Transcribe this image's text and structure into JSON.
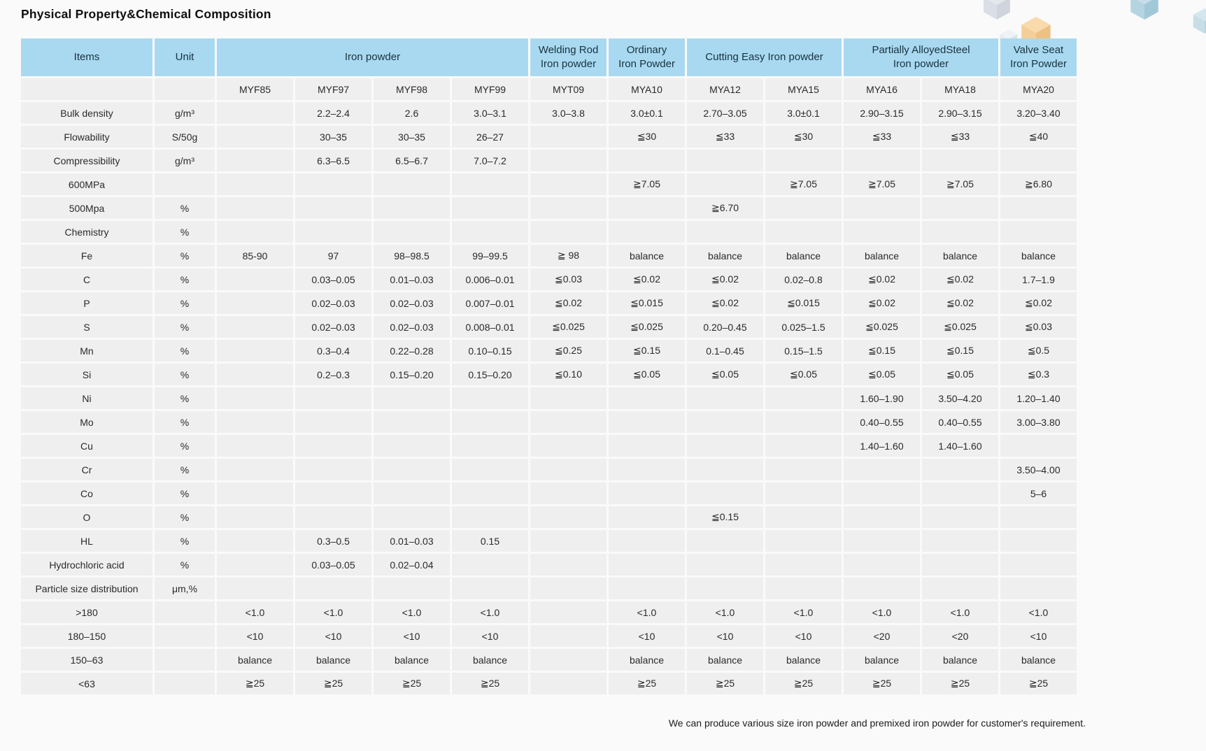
{
  "page": {
    "title": "Physical Property&Chemical Composition",
    "footer_note": "We can produce various size iron powder and premixed iron powder for customer's requirement."
  },
  "colors": {
    "header_blue": "#a9d9f0",
    "cell_gray": "#efefef",
    "page_background": "#fafafa"
  },
  "table": {
    "group_headers": [
      {
        "label": "Items"
      },
      {
        "label": "Unit"
      },
      {
        "label": "Iron powder"
      },
      {
        "label": "Welding Rod\nIron  powder"
      },
      {
        "label": "Ordinary\nIron Powder"
      },
      {
        "label": "Cutting Easy Iron powder"
      },
      {
        "label": "Partially AlloyedSteel\nIron powder"
      },
      {
        "label": "Valve Seat\nIron Powder"
      }
    ],
    "model_row": [
      "",
      "",
      "MYF85",
      "MYF97",
      "MYF98",
      "MYF99",
      "MYT09",
      "MYA10",
      "MYA12",
      "MYA15",
      "MYA16",
      "MYA18",
      "MYA20"
    ],
    "rows": [
      {
        "item": "Bulk density",
        "unit": "g/m³",
        "values": [
          "",
          "2.2–2.4",
          "2.6",
          "3.0–3.1",
          "3.0–3.8",
          "3.0±0.1",
          "2.70–3.05",
          "3.0±0.1",
          "2.90–3.15",
          "2.90–3.15",
          "3.20–3.40"
        ]
      },
      {
        "item": "Flowability",
        "unit": "S/50g",
        "values": [
          "",
          "30–35",
          "30–35",
          "26–27",
          "",
          "≦30",
          "≦33",
          "≦30",
          "≦33",
          "≦33",
          "≦40"
        ]
      },
      {
        "item": "Compressibility",
        "unit": "g/m³",
        "values": [
          "",
          "6.3–6.5",
          "6.5–6.7",
          "7.0–7.2",
          "",
          "",
          "",
          "",
          "",
          "",
          ""
        ]
      },
      {
        "item": "600MPa",
        "unit": "",
        "values": [
          "",
          "",
          "",
          "",
          "",
          "≧7.05",
          "",
          "≧7.05",
          "≧7.05",
          "≧7.05",
          "≧6.80"
        ]
      },
      {
        "item": "500Mpa",
        "unit": "%",
        "values": [
          "",
          "",
          "",
          "",
          "",
          "",
          "≧6.70",
          "",
          "",
          "",
          ""
        ]
      },
      {
        "item": "Chemistry",
        "unit": "%",
        "values": [
          "",
          "",
          "",
          "",
          "",
          "",
          "",
          "",
          "",
          "",
          ""
        ]
      },
      {
        "item": "Fe",
        "unit": "%",
        "values": [
          "85-90",
          "97",
          "98–98.5",
          "99–99.5",
          "≧ 98",
          "balance",
          "balance",
          "balance",
          "balance",
          "balance",
          "balance"
        ]
      },
      {
        "item": "C",
        "unit": "%",
        "values": [
          "",
          "0.03–0.05",
          "0.01–0.03",
          "0.006–0.01",
          "≦0.03",
          "≦0.02",
          "≦0.02",
          "0.02–0.8",
          "≦0.02",
          "≦0.02",
          "1.7–1.9"
        ]
      },
      {
        "item": "P",
        "unit": "%",
        "values": [
          "",
          "0.02–0.03",
          "0.02–0.03",
          "0.007–0.01",
          "≦0.02",
          "≦0.015",
          "≦0.02",
          "≦0.015",
          "≦0.02",
          "≦0.02",
          "≦0.02"
        ]
      },
      {
        "item": "S",
        "unit": "%",
        "values": [
          "",
          "0.02–0.03",
          "0.02–0.03",
          "0.008–0.01",
          "≦0.025",
          "≦0.025",
          "0.20–0.45",
          "0.025–1.5",
          "≦0.025",
          "≦0.025",
          "≦0.03"
        ]
      },
      {
        "item": "Mn",
        "unit": "%",
        "values": [
          "",
          "0.3–0.4",
          "0.22–0.28",
          "0.10–0.15",
          "≦0.25",
          "≦0.15",
          "0.1–0.45",
          "0.15–1.5",
          "≦0.15",
          "≦0.15",
          "≦0.5"
        ]
      },
      {
        "item": "Si",
        "unit": "%",
        "values": [
          "",
          "0.2–0.3",
          "0.15–0.20",
          "0.15–0.20",
          "≦0.10",
          "≦0.05",
          "≦0.05",
          "≦0.05",
          "≦0.05",
          "≦0.05",
          "≦0.3"
        ]
      },
      {
        "item": "Ni",
        "unit": "%",
        "values": [
          "",
          "",
          "",
          "",
          "",
          "",
          "",
          "",
          "1.60–1.90",
          "3.50–4.20",
          "1.20–1.40"
        ]
      },
      {
        "item": "Mo",
        "unit": "%",
        "values": [
          "",
          "",
          "",
          "",
          "",
          "",
          "",
          "",
          "0.40–0.55",
          "0.40–0.55",
          "3.00–3.80"
        ]
      },
      {
        "item": "Cu",
        "unit": "%",
        "values": [
          "",
          "",
          "",
          "",
          "",
          "",
          "",
          "",
          "1.40–1.60",
          "1.40–1.60",
          ""
        ]
      },
      {
        "item": "Cr",
        "unit": "%",
        "values": [
          "",
          "",
          "",
          "",
          "",
          "",
          "",
          "",
          "",
          "",
          "3.50–4.00"
        ]
      },
      {
        "item": "Co",
        "unit": "%",
        "values": [
          "",
          "",
          "",
          "",
          "",
          "",
          "",
          "",
          "",
          "",
          "5–6"
        ]
      },
      {
        "item": "O",
        "unit": "%",
        "values": [
          "",
          "",
          "",
          "",
          "",
          "",
          "≦0.15",
          "",
          "",
          "",
          ""
        ]
      },
      {
        "item": "HL",
        "unit": "%",
        "values": [
          "",
          "0.3–0.5",
          "0.01–0.03",
          "0.15",
          "",
          "",
          "",
          "",
          "",
          "",
          ""
        ]
      },
      {
        "item": "Hydrochloric acid",
        "unit": "%",
        "values": [
          "",
          "0.03–0.05",
          "0.02–0.04",
          "",
          "",
          "",
          "",
          "",
          "",
          "",
          ""
        ]
      },
      {
        "item": "Particle size distribution",
        "unit": "μm,%",
        "values": [
          "",
          "",
          "",
          "",
          "",
          "",
          "",
          "",
          "",
          "",
          ""
        ]
      },
      {
        "item": ">180",
        "unit": "",
        "values": [
          "<1.0",
          "<1.0",
          "<1.0",
          "<1.0",
          "",
          "<1.0",
          "<1.0",
          "<1.0",
          "<1.0",
          "<1.0",
          "<1.0"
        ]
      },
      {
        "item": "180–150",
        "unit": "",
        "values": [
          "<10",
          "<10",
          "<10",
          "<10",
          "",
          "<10",
          "<10",
          "<10",
          "<20",
          "<20",
          "<10"
        ]
      },
      {
        "item": "150–63",
        "unit": "",
        "values": [
          "balance",
          "balance",
          "balance",
          "balance",
          "",
          "balance",
          "balance",
          "balance",
          "balance",
          "balance",
          "balance"
        ]
      },
      {
        "item": "<63",
        "unit": "",
        "values": [
          "≧25",
          "≧25",
          "≧25",
          "≧25",
          "",
          "≧25",
          "≧25",
          "≧25",
          "≧25",
          "≧25",
          "≧25"
        ]
      }
    ]
  }
}
